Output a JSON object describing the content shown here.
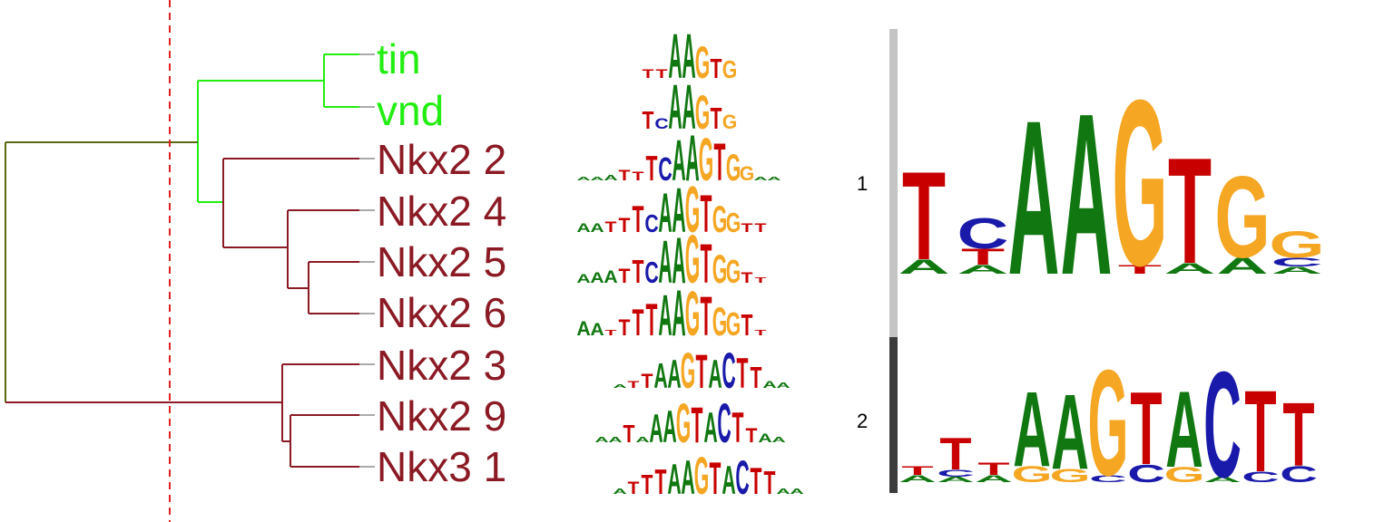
{
  "leaves": [
    {
      "name": "tin",
      "color": "#22ee11"
    },
    {
      "name": "vnd",
      "color": "#22ee11"
    },
    {
      "name": "Nkx2 2",
      "color": "#8b1a24"
    },
    {
      "name": "Nkx2 4",
      "color": "#8b1a24"
    },
    {
      "name": "Nkx2 5",
      "color": "#8b1a24"
    },
    {
      "name": "Nkx2 6",
      "color": "#8b1a24"
    },
    {
      "name": "Nkx2 3",
      "color": "#8b1a24"
    },
    {
      "name": "Nkx2 9",
      "color": "#8b1a24"
    },
    {
      "name": "Nkx3 1",
      "color": "#8b1a24"
    }
  ],
  "clusters": [
    {
      "label": "1",
      "bar_color": "#c4c4c4",
      "consensus": "TCAAGTGG"
    },
    {
      "label": "2",
      "bar_color": "#3c3c3c",
      "consensus": "TTTAAGTACTT"
    }
  ],
  "small_logos": [
    "TTAAGTG",
    "TCAAGTG",
    "TTTCAAGTGG",
    "AATTTCAAGTGG T",
    "AAATTCAAGTGG T",
    "AA TTAAGTGG T",
    "TTAAGTACTTAA",
    "T AAGTACTT AA",
    "TTTAAGTACTT"
  ],
  "colors": {
    "A": "#117711",
    "C": "#1a1aaa",
    "G": "#f5a623",
    "T": "#c80000",
    "cut_line": "#e02020",
    "branch_green": "#22ee11",
    "branch_red": "#8b1a24",
    "branch_olive": "#5a6a10"
  }
}
